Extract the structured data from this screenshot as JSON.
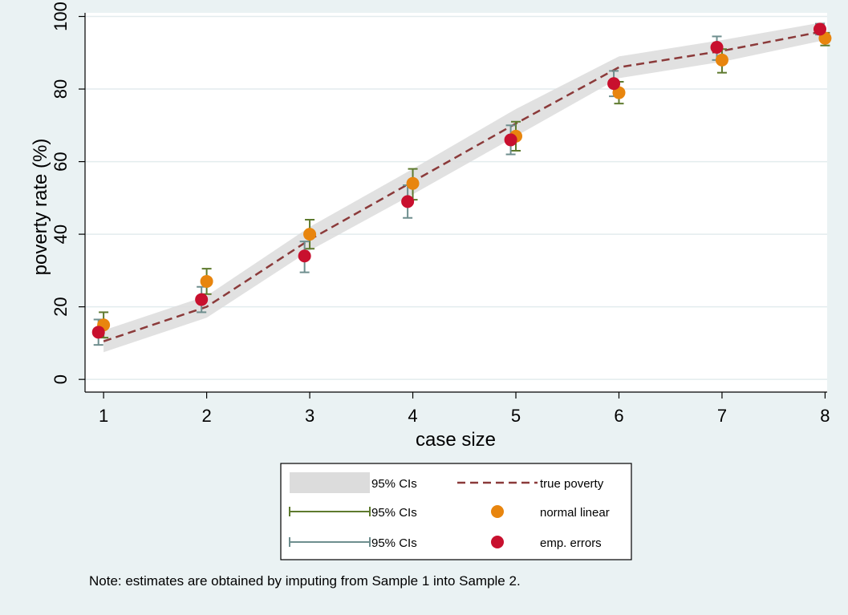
{
  "chart_data": {
    "type": "scatter",
    "xlabel": "case size",
    "ylabel": "poverty rate (%)",
    "x": [
      1,
      2,
      3,
      4,
      5,
      6,
      7,
      8
    ],
    "xlim": [
      0.82,
      8.02
    ],
    "ylim": [
      -3.5,
      101
    ],
    "xticks": [
      1,
      2,
      3,
      4,
      5,
      6,
      7,
      8
    ],
    "yticks": [
      0,
      20,
      40,
      60,
      80,
      100
    ],
    "grid": true,
    "legend_position": "bottom",
    "true_poverty": {
      "legend_label": "true poverty",
      "color": "#8b3a3a",
      "y": [
        10.5,
        20,
        38.5,
        54.5,
        70.5,
        86,
        90.5,
        96
      ]
    },
    "ci_band": {
      "legend_label": "95% CIs",
      "color": "#dcdcdc",
      "lower": [
        7.5,
        17,
        35.5,
        51,
        67,
        83,
        87.5,
        93.5
      ],
      "upper": [
        13.5,
        23,
        42,
        58,
        74.5,
        89,
        93.5,
        98.5
      ]
    },
    "series": [
      {
        "name": "normal linear",
        "ci_legend_label": "95% CIs",
        "color": "#e8850e",
        "ci_color": "#5e7a2e",
        "x_offset": 0.0,
        "y": [
          15,
          27,
          40,
          54,
          67,
          79,
          88,
          94
        ],
        "ci_low": [
          11.5,
          23.5,
          36,
          49.5,
          63,
          76,
          84.5,
          92
        ],
        "ci_high": [
          18.5,
          30.5,
          44,
          58,
          71,
          82,
          91,
          95.5
        ]
      },
      {
        "name": "emp. errors",
        "ci_legend_label": "95% CIs",
        "color": "#c8102e",
        "ci_color": "#6e8e8e",
        "x_offset": -0.05,
        "y": [
          13,
          22,
          34,
          49,
          66,
          81.5,
          91.5,
          96.5
        ],
        "ci_low": [
          9.5,
          18.5,
          29.5,
          44.5,
          62,
          78,
          88,
          95
        ],
        "ci_high": [
          16.5,
          25.5,
          38,
          53.5,
          70,
          85,
          94.5,
          98
        ]
      }
    ]
  },
  "note": "Note: estimates are obtained by imputing from Sample 1 into Sample 2."
}
